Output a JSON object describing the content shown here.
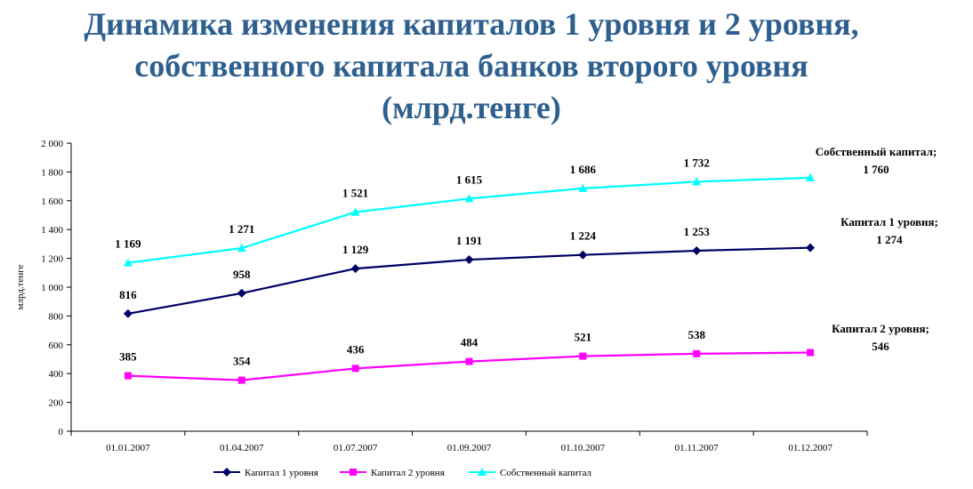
{
  "title_lines": [
    "Динамика изменения капиталов 1 уровня и 2 уровня,",
    "собственного капитала банков второго уровня",
    "(млрд.тенге)"
  ],
  "chart_data": {
    "type": "line",
    "categories": [
      "01.01.2007",
      "01.04.2007",
      "01.07.2007",
      "01.09.2007",
      "01.10.2007",
      "01.11.2007",
      "01.12.2007"
    ],
    "ylabel": "млрд.тенге",
    "ylim": [
      0,
      2000
    ],
    "yticks": [
      0,
      200,
      400,
      600,
      800,
      1000,
      1200,
      1400,
      1600,
      1800,
      2000
    ],
    "ytick_labels": [
      "0",
      "200",
      "400",
      "600",
      "800",
      "1 000",
      "1 200",
      "1 400",
      "1 600",
      "1 800",
      "2 000"
    ],
    "grid": false,
    "legend_position": "bottom",
    "series": [
      {
        "name": "Капитал 1 уровня",
        "color": "#000066",
        "marker": "diamond",
        "values": [
          816,
          958,
          1129,
          1191,
          1224,
          1253,
          1274
        ],
        "labels": [
          "816",
          "958",
          "1 129",
          "1 191",
          "1 224",
          "1 253",
          ""
        ],
        "end_label": [
          "Капитал 1 уровня;",
          "1 274"
        ]
      },
      {
        "name": "Капитал 2 уровня",
        "color": "#ff00ff",
        "marker": "square",
        "values": [
          385,
          354,
          436,
          484,
          521,
          538,
          546
        ],
        "labels": [
          "385",
          "354",
          "436",
          "484",
          "521",
          "538",
          ""
        ],
        "end_label": [
          "Капитал 2 уровня;",
          "546"
        ]
      },
      {
        "name": "Собственный капитал",
        "color": "#00ffff",
        "marker": "triangle",
        "values": [
          1169,
          1271,
          1521,
          1615,
          1686,
          1732,
          1760
        ],
        "labels": [
          "1 169",
          "1 271",
          "1 521",
          "1 615",
          "1 686",
          "1 732",
          ""
        ],
        "end_label": [
          "Собственный капитал;",
          "1 760"
        ]
      }
    ]
  }
}
